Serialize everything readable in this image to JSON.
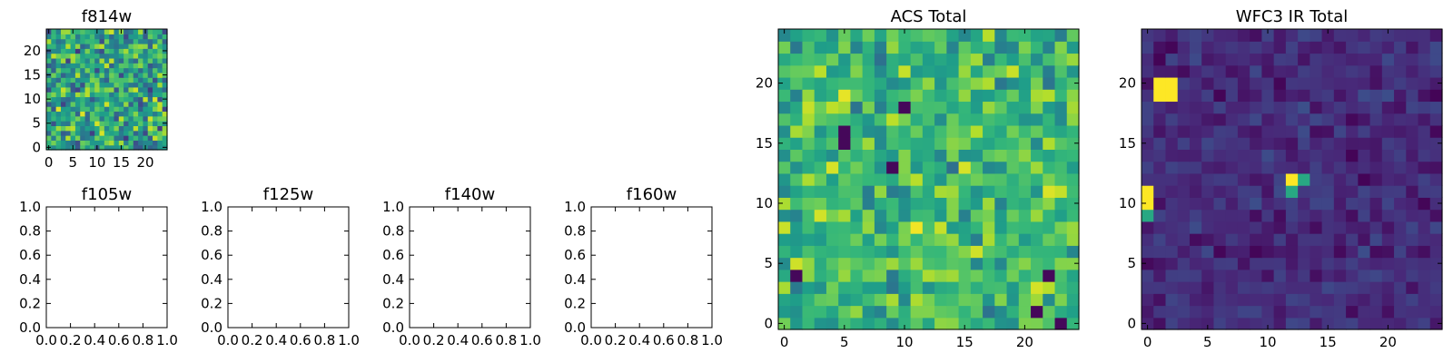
{
  "chart_data": [
    {
      "id": "f814w",
      "type": "heatmap",
      "title": "f814w",
      "xlim": [
        -0.5,
        24.5
      ],
      "ylim": [
        -0.5,
        24.5
      ],
      "xticks": [
        0,
        5,
        10,
        15,
        20
      ],
      "xtick_labels": [
        "0",
        "5",
        "10",
        "15",
        "20"
      ],
      "yticks": [
        0,
        5,
        10,
        15,
        20
      ],
      "ytick_labels": [
        "0",
        "5",
        "10",
        "15",
        "20"
      ],
      "grid": false,
      "colormap": "viridis",
      "grid_size": 25,
      "pattern": "noise",
      "value_range": [
        0.15,
        1.0
      ]
    },
    {
      "id": "f105w",
      "type": "empty",
      "title": "f105w",
      "xlim": [
        0,
        1
      ],
      "ylim": [
        0,
        1
      ],
      "xticks": [
        0,
        0.2,
        0.4,
        0.6,
        0.8,
        1.0
      ],
      "xtick_labels": [
        "0.0",
        "0.2",
        "0.4",
        "0.6",
        "0.8",
        "1.0"
      ],
      "yticks": [
        0,
        0.2,
        0.4,
        0.6,
        0.8,
        1.0
      ],
      "ytick_labels": [
        "0.0",
        "0.2",
        "0.4",
        "0.6",
        "0.8",
        "1.0"
      ],
      "grid": false
    },
    {
      "id": "f125w",
      "type": "empty",
      "title": "f125w",
      "xlim": [
        0,
        1
      ],
      "ylim": [
        0,
        1
      ],
      "xticks": [
        0,
        0.2,
        0.4,
        0.6,
        0.8,
        1.0
      ],
      "xtick_labels": [
        "0.0",
        "0.2",
        "0.4",
        "0.6",
        "0.8",
        "1.0"
      ],
      "yticks": [
        0,
        0.2,
        0.4,
        0.6,
        0.8,
        1.0
      ],
      "ytick_labels": [
        "0.0",
        "0.2",
        "0.4",
        "0.6",
        "0.8",
        "1.0"
      ],
      "grid": false
    },
    {
      "id": "f140w",
      "type": "empty",
      "title": "f140w",
      "xlim": [
        0,
        1
      ],
      "ylim": [
        0,
        1
      ],
      "xticks": [
        0,
        0.2,
        0.4,
        0.6,
        0.8,
        1.0
      ],
      "xtick_labels": [
        "0.0",
        "0.2",
        "0.4",
        "0.6",
        "0.8",
        "1.0"
      ],
      "yticks": [
        0,
        0.2,
        0.4,
        0.6,
        0.8,
        1.0
      ],
      "ytick_labels": [
        "0.0",
        "0.2",
        "0.4",
        "0.6",
        "0.8",
        "1.0"
      ],
      "grid": false
    },
    {
      "id": "f160w",
      "type": "empty",
      "title": "f160w",
      "xlim": [
        0,
        1
      ],
      "ylim": [
        0,
        1
      ],
      "xticks": [
        0,
        0.2,
        0.4,
        0.6,
        0.8,
        1.0
      ],
      "xtick_labels": [
        "0.0",
        "0.2",
        "0.4",
        "0.6",
        "0.8",
        "1.0"
      ],
      "yticks": [
        0,
        0.2,
        0.4,
        0.6,
        0.8,
        1.0
      ],
      "ytick_labels": [
        "0.0",
        "0.2",
        "0.4",
        "0.6",
        "0.8",
        "1.0"
      ],
      "grid": false
    },
    {
      "id": "acs-total",
      "type": "heatmap",
      "title": "ACS Total",
      "xlim": [
        -0.5,
        24.5
      ],
      "ylim": [
        -0.5,
        24.5
      ],
      "xticks": [
        0,
        5,
        10,
        15,
        20
      ],
      "xtick_labels": [
        "0",
        "5",
        "10",
        "15",
        "20"
      ],
      "yticks": [
        0,
        5,
        10,
        15,
        20
      ],
      "ytick_labels": [
        "0",
        "5",
        "10",
        "15",
        "20"
      ],
      "grid": false,
      "colormap": "viridis",
      "grid_size": 25,
      "pattern": "noise",
      "value_range": [
        0.35,
        1.0
      ],
      "dark_cells": [
        [
          5,
          16
        ],
        [
          5,
          15
        ],
        [
          1,
          4
        ],
        [
          21,
          1
        ],
        [
          23,
          0
        ],
        [
          22,
          4
        ],
        [
          10,
          18
        ],
        [
          9,
          13
        ]
      ]
    },
    {
      "id": "wfc3-ir-total",
      "type": "heatmap",
      "title": "WFC3 IR Total",
      "xlim": [
        -0.5,
        24.5
      ],
      "ylim": [
        -0.5,
        24.5
      ],
      "xticks": [
        0,
        5,
        10,
        15,
        20
      ],
      "xtick_labels": [
        "0",
        "5",
        "10",
        "15",
        "20"
      ],
      "yticks": [
        0,
        5,
        10,
        15,
        20
      ],
      "ytick_labels": [
        "0",
        "5",
        "10",
        "15",
        "20"
      ],
      "grid": false,
      "colormap": "viridis",
      "grid_size": 25,
      "pattern": "low",
      "value_range": [
        0.0,
        0.25
      ],
      "bright_cells": [
        [
          1,
          20
        ],
        [
          2,
          20
        ],
        [
          1,
          19
        ],
        [
          2,
          19
        ],
        [
          0,
          11
        ],
        [
          0,
          10
        ],
        [
          12,
          12
        ]
      ],
      "mid_cells": [
        [
          13,
          12
        ],
        [
          12,
          11
        ],
        [
          0,
          9
        ]
      ]
    }
  ]
}
